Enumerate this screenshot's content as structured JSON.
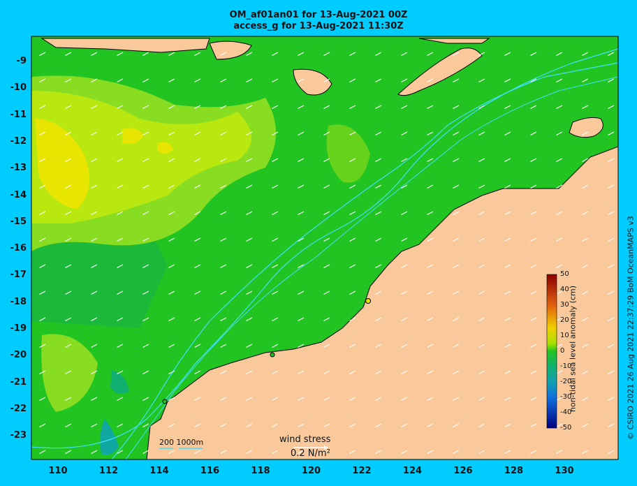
{
  "title_line1": "OM_af01an01 for 13-Aug-2021 00Z",
  "title_line2": "access_g for 13-Aug-2021 11:30Z",
  "y_ticks": [
    "-9",
    "-10",
    "-11",
    "-12",
    "-13",
    "-14",
    "-15",
    "-16",
    "-17",
    "-18",
    "-19",
    "-20",
    "-21",
    "-22",
    "-23"
  ],
  "x_ticks": [
    "110",
    "112",
    "114",
    "116",
    "118",
    "120",
    "122",
    "124",
    "126",
    "128",
    "130"
  ],
  "colorbar": {
    "label": "non-tidal sea level anomaly (cm)",
    "ticks": [
      "50",
      "40",
      "30",
      "20",
      "10",
      "0",
      "-10",
      "-20",
      "-30",
      "-40",
      "-50"
    ],
    "range": [
      -50,
      50
    ]
  },
  "wind_stress": {
    "title": "wind stress",
    "value": "0.2 N/m²"
  },
  "depth_scale": {
    "text": "200  1000m"
  },
  "credit": "© CSIRO 2021  26 Aug 2021 22:37:29 BoM OceanMAPS v3",
  "colors": {
    "background": "#00ccff",
    "land": "#f9c89b",
    "ocean_base": "#22c422",
    "coast": "#000000",
    "isobath": "#40e0ff"
  }
}
